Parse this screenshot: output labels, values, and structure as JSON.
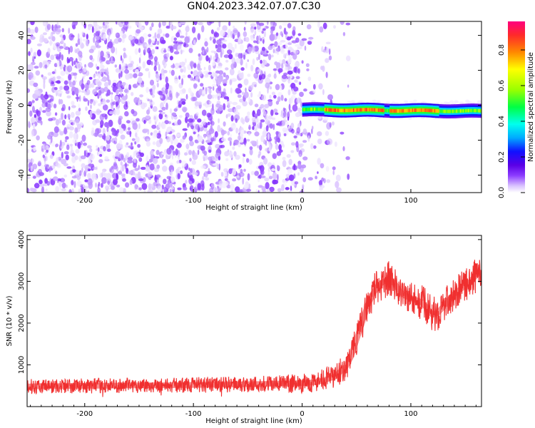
{
  "title": "GN04.2023.342.07.07.C30",
  "chart_data": [
    {
      "type": "heatmap",
      "title": "GN04.2023.342.07.07.C30",
      "xlabel": "Height of straight line (km)",
      "ylabel": "Frequency (Hz)",
      "xlim": [
        -253,
        165
      ],
      "ylim": [
        -50,
        48
      ],
      "x_ticks": [
        -200,
        -100,
        0,
        100
      ],
      "y_ticks": [
        -40,
        -20,
        0,
        20,
        40
      ],
      "colorbar": {
        "label": "Normalized spectral amplitude",
        "ticks": [
          "0.0",
          "0.2",
          "0.4",
          "0.6",
          "0.8"
        ],
        "range": [
          0,
          0.96
        ],
        "colormap": [
          "#ffffff",
          "#d9c2ff",
          "#8c3cff",
          "#5a00e6",
          "#1010ff",
          "#00aaff",
          "#00ffee",
          "#00ff44",
          "#99ff00",
          "#ffff00",
          "#ff8800",
          "#ff2a2a",
          "#ff007f"
        ]
      },
      "features": {
        "noise_region_x": [
          -253,
          30
        ],
        "noise_amplitude": 0.15,
        "signal_band_x": [
          0,
          165
        ],
        "signal_band_freq": [
          -5,
          0
        ],
        "signal_peak_amplitude": 0.85
      }
    },
    {
      "type": "line",
      "xlabel": "Height of straight line (km)",
      "ylabel": "SNR (10 * v/v)",
      "xlim": [
        -253,
        165
      ],
      "ylim": [
        0,
        4100
      ],
      "x_ticks": [
        -200,
        -100,
        0,
        100
      ],
      "y_ticks": [
        1000,
        2000,
        3000,
        4000
      ],
      "color": "#f03030",
      "x": [
        -253,
        -240,
        -220,
        -200,
        -180,
        -160,
        -140,
        -120,
        -100,
        -80,
        -60,
        -40,
        -20,
        0,
        10,
        20,
        30,
        40,
        45,
        50,
        55,
        60,
        65,
        70,
        75,
        80,
        85,
        90,
        95,
        100,
        105,
        110,
        115,
        120,
        125,
        130,
        135,
        140,
        145,
        150,
        155,
        160,
        165
      ],
      "y": [
        480,
        490,
        490,
        500,
        500,
        505,
        510,
        510,
        520,
        525,
        530,
        540,
        550,
        560,
        580,
        630,
        720,
        950,
        1200,
        1600,
        2000,
        2400,
        2700,
        2900,
        3000,
        3050,
        2950,
        2750,
        2650,
        2600,
        2550,
        2500,
        2350,
        2200,
        2250,
        2400,
        2550,
        2700,
        2800,
        2900,
        3000,
        3150,
        3250
      ],
      "noise_amplitude": [
        180,
        180,
        180,
        180,
        180,
        180,
        180,
        180,
        190,
        190,
        190,
        200,
        210,
        220,
        240,
        280,
        300,
        330,
        360,
        380,
        400,
        420,
        430,
        430,
        420,
        410,
        400,
        400,
        400,
        400,
        410,
        430,
        430,
        420,
        420,
        410,
        400,
        400,
        400,
        400,
        400,
        420,
        430
      ]
    }
  ]
}
